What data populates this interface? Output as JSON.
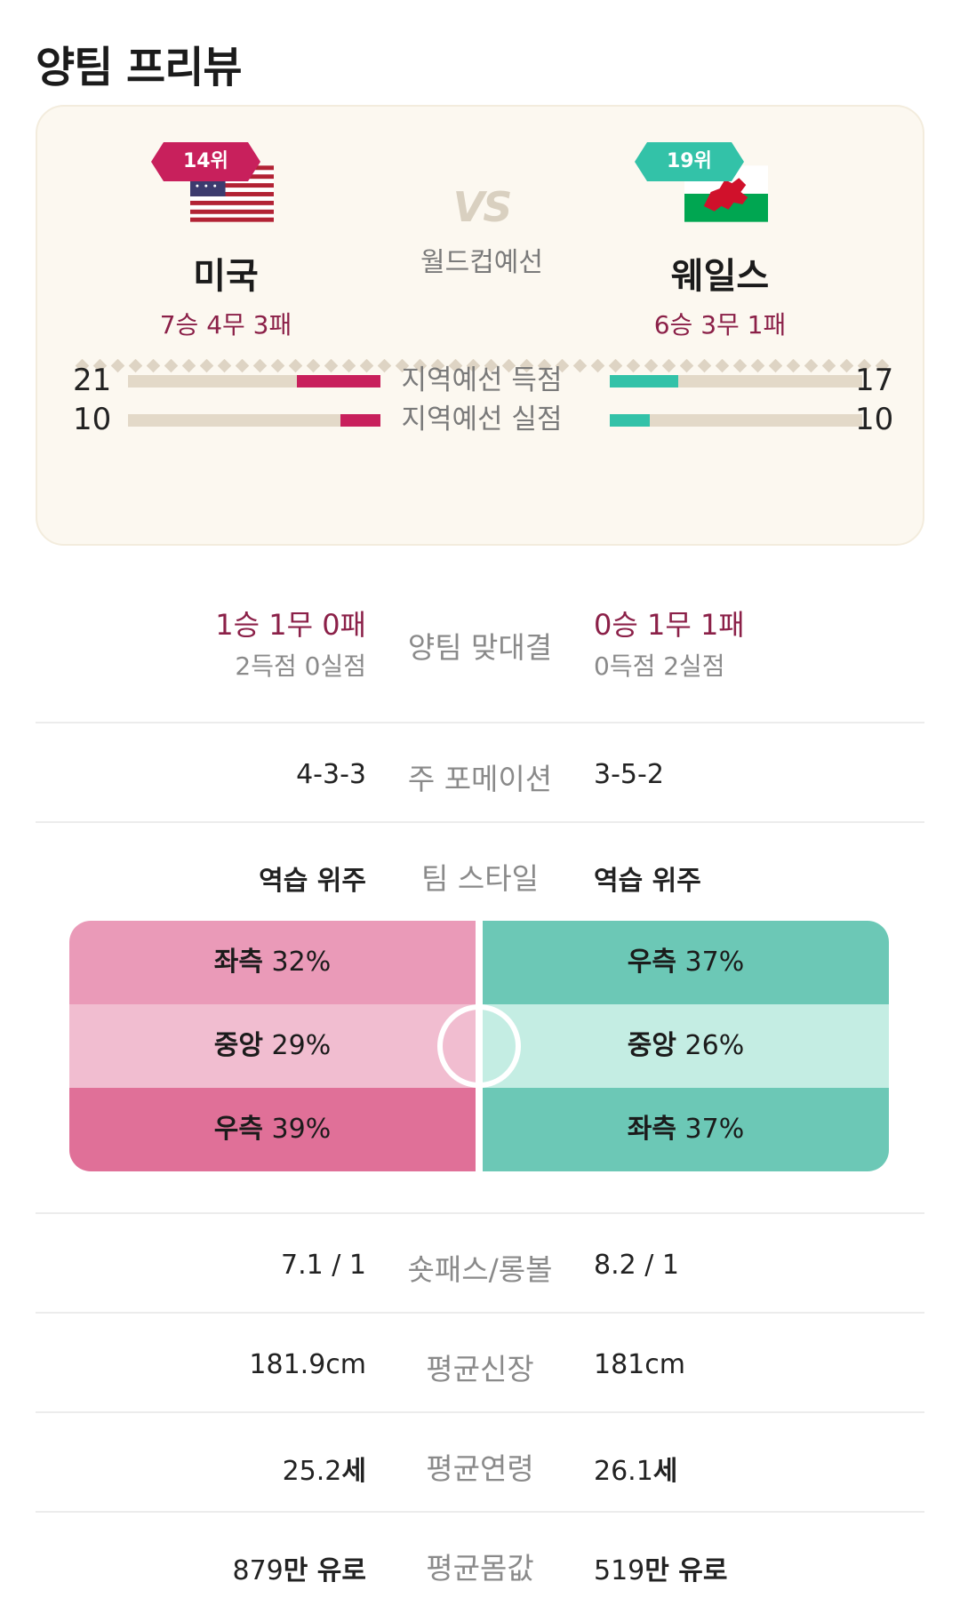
{
  "page": {
    "title": "양팀 프리뷰"
  },
  "summary": {
    "home": {
      "rank": "14위",
      "name": "미국",
      "record": "7승 4무 3패",
      "flag_icon": "usa-flag-icon"
    },
    "away": {
      "rank": "19위",
      "name": "웨일스",
      "record": "6승 3무 1패",
      "flag_icon": "wales-flag-icon"
    },
    "vs": "VS",
    "stage": "월드컵예선",
    "stats": [
      {
        "label": "지역예선 득점",
        "home": "21",
        "away": "17",
        "home_fill": 0.33,
        "away_fill": 0.27
      },
      {
        "label": "지역예선 실점",
        "home": "10",
        "away": "10",
        "home_fill": 0.16,
        "away_fill": 0.16
      }
    ],
    "colors": {
      "home": "#c8205c",
      "away": "#33c2a8"
    }
  },
  "h2h": {
    "label": "양팀 맞대결",
    "home_record": "1승 1무 0패",
    "home_goals": "2득점 0실점",
    "away_record": "0승 1무 1패",
    "away_goals": "0득점 2실점"
  },
  "formation": {
    "label": "주 포메이션",
    "home": "4-3-3",
    "away": "3-5-2"
  },
  "style": {
    "label": "팀 스타일",
    "home": "역습 위주",
    "away": "역습 위주",
    "home_zones": [
      "좌측 32%",
      "중앙 29%",
      "우측 39%"
    ],
    "away_zones": [
      "우측 37%",
      "중앙 26%",
      "좌측 37%"
    ]
  },
  "pass": {
    "label": "숏패스/롱볼",
    "home": "7.1 / 1",
    "away": "8.2 / 1"
  },
  "height": {
    "label": "평균신장",
    "home": "181.9cm",
    "away": "181cm"
  },
  "age": {
    "label": "평균연령",
    "home_num": "25.2",
    "home_unit": "세",
    "away_num": "26.1",
    "away_unit": "세"
  },
  "value": {
    "label": "평균몸값",
    "home_num": "879",
    "home_unit": "만 유로",
    "away_num": "519",
    "away_unit": "만 유로"
  }
}
